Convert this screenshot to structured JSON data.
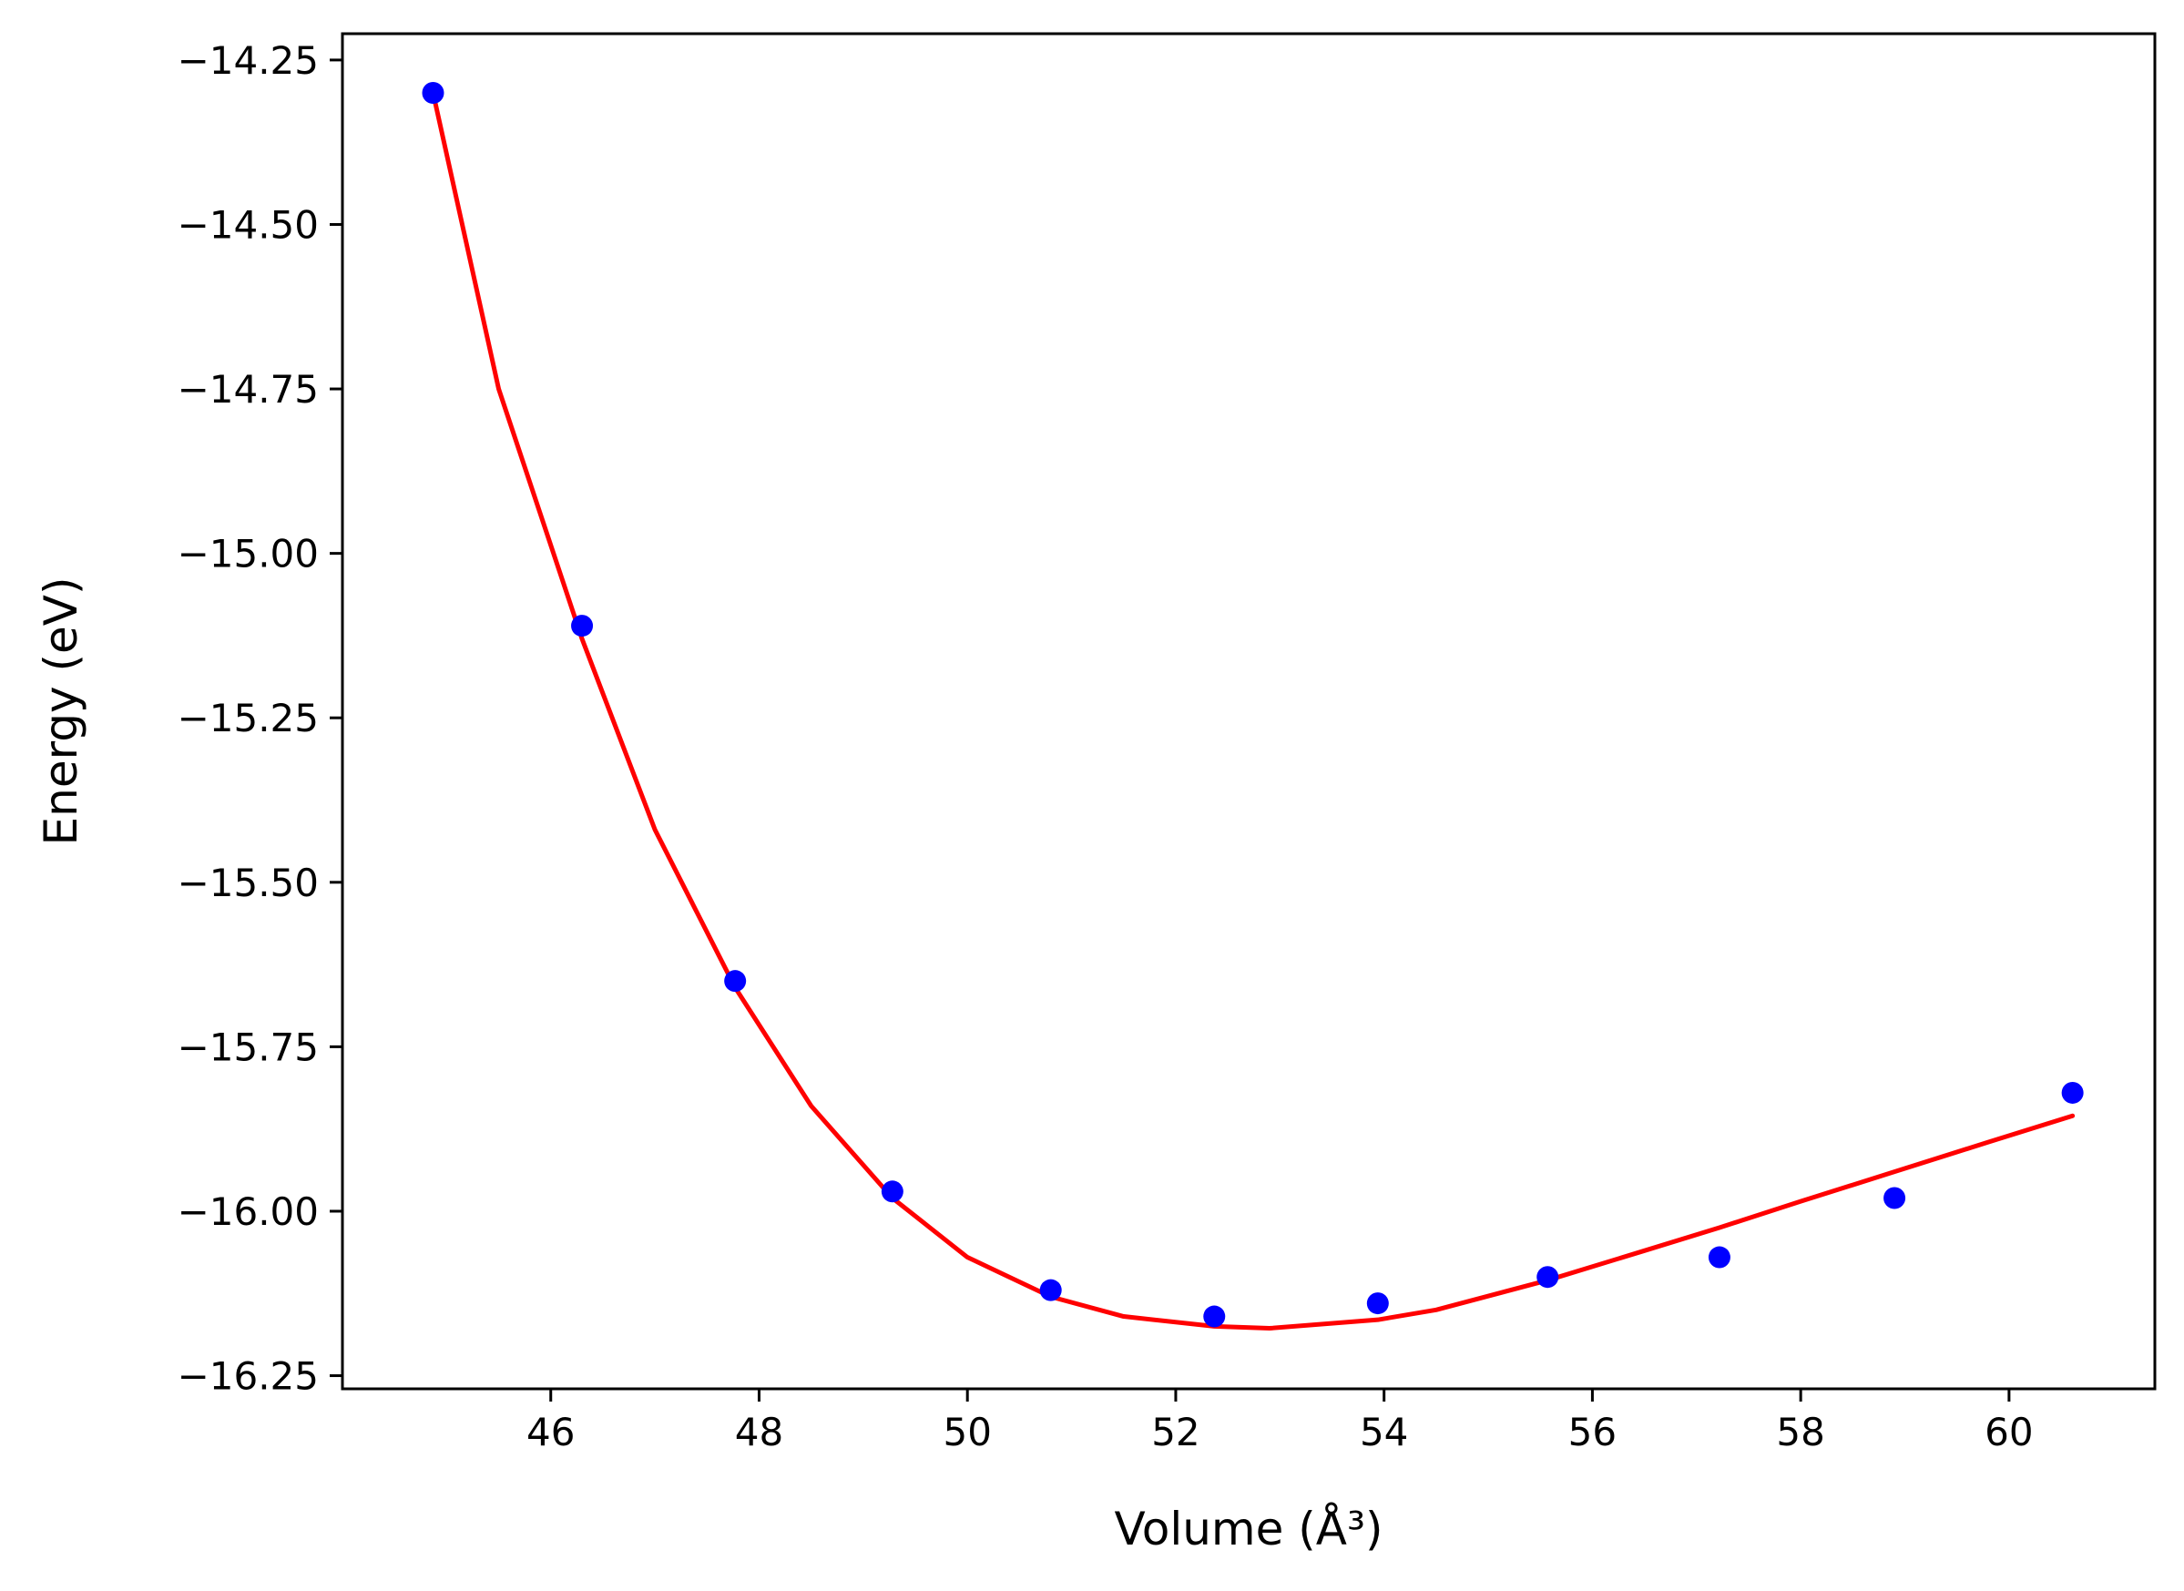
{
  "chart_data": {
    "type": "scatter",
    "title": "",
    "xlabel": "Volume (Å³)",
    "ylabel": "Energy (eV)",
    "xlim": [
      44.0,
      61.4
    ],
    "ylim": [
      -16.27,
      -14.21
    ],
    "grid": false,
    "legend": "none",
    "xticks": [
      46,
      48,
      50,
      52,
      54,
      56,
      58,
      60
    ],
    "xtick_labels": [
      "46",
      "48",
      "50",
      "52",
      "54",
      "56",
      "58",
      "60"
    ],
    "yticks": [
      -14.25,
      -14.5,
      -14.75,
      -15.0,
      -15.25,
      -15.5,
      -15.75,
      -16.0,
      -16.25
    ],
    "ytick_labels": [
      "−14.25",
      "−14.50",
      "−14.75",
      "−15.00",
      "−15.25",
      "−15.50",
      "−15.75",
      "−16.00",
      "−16.25"
    ],
    "series": [
      {
        "kind": "scatter",
        "color": "#0000ff",
        "x": [
          44.87,
          46.3,
          47.77,
          49.28,
          50.8,
          52.37,
          53.94,
          55.57,
          57.22,
          58.9,
          60.61
        ],
        "y": [
          -14.3,
          -15.11,
          -15.65,
          -15.97,
          -16.12,
          -16.16,
          -16.14,
          -16.1,
          -16.07,
          -15.98,
          -15.82
        ]
      },
      {
        "kind": "line",
        "color": "#ff0000",
        "x": [
          44.87,
          45.5,
          46.3,
          47.0,
          47.77,
          48.5,
          49.28,
          50.0,
          50.8,
          51.5,
          52.37,
          52.9,
          53.94,
          54.5,
          55.57,
          56.5,
          57.22,
          58.0,
          58.9,
          59.8,
          60.61
        ],
        "y": [
          -14.3,
          -14.75,
          -15.13,
          -15.42,
          -15.66,
          -15.84,
          -15.98,
          -16.07,
          -16.13,
          -16.16,
          -16.175,
          -16.178,
          -16.165,
          -16.15,
          -16.105,
          -16.06,
          -16.025,
          -15.985,
          -15.94,
          -15.895,
          -15.855
        ]
      }
    ]
  }
}
